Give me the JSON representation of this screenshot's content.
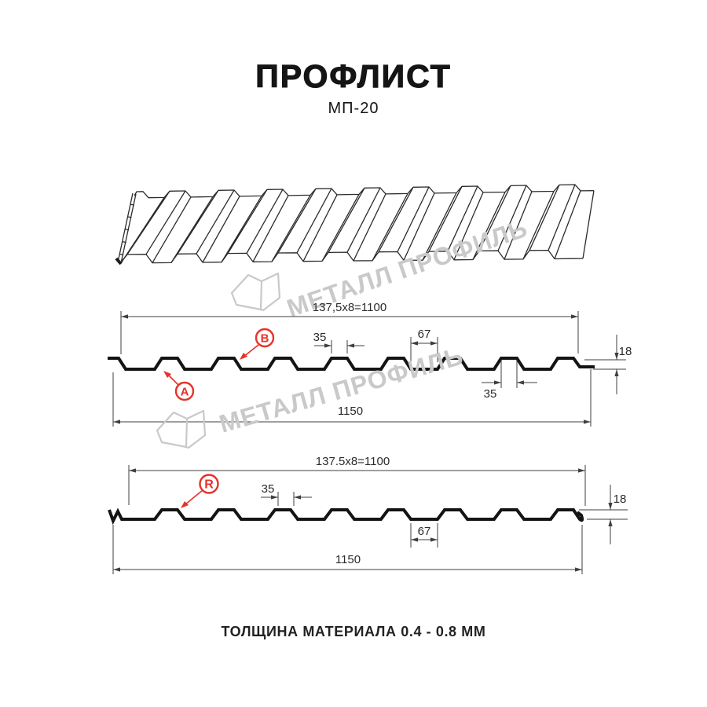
{
  "header": {
    "title": "ПРОФЛИСТ",
    "subtitle": "МП-20"
  },
  "footer": {
    "material_note": "ТОЛЩИНА МАТЕРИАЛА 0.4 - 0.8 ММ"
  },
  "watermark": {
    "brand": "МЕТАЛЛ ПРОФИЛЬ"
  },
  "colors": {
    "accent_red": "#e8312a",
    "dim_line": "#3f3f3f",
    "profile_line": "#141414",
    "watermark_gray": "#c9c9c9",
    "text": "#151515"
  },
  "diagram": {
    "section_a": {
      "module_dim": "137,5x8=1100",
      "crest_top_dim": "35",
      "valley_dim": "67",
      "crest_bottom_dim": "35",
      "height_dim": "18",
      "overall_dim": "1150",
      "label_a": "A",
      "label_b": "B"
    },
    "section_r": {
      "module_dim": "137.5x8=1100",
      "crest_dim": "35",
      "valley_dim": "67",
      "height_dim": "18",
      "overall_dim": "1150",
      "label_r": "R"
    }
  }
}
